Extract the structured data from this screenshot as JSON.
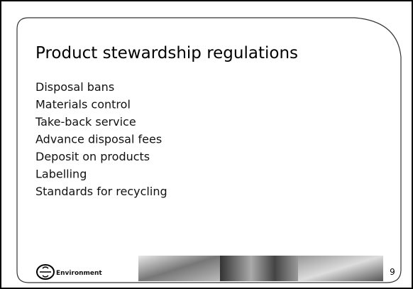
{
  "header": {
    "title": "Product stewardship regulations"
  },
  "items": [
    "Disposal bans",
    "Materials control",
    "Take-back service",
    "Advance disposal fees",
    "Deposit on products",
    "Labelling",
    "Standards for recycling"
  ],
  "footer": {
    "logo_text": "Environment",
    "page_number": "9"
  }
}
